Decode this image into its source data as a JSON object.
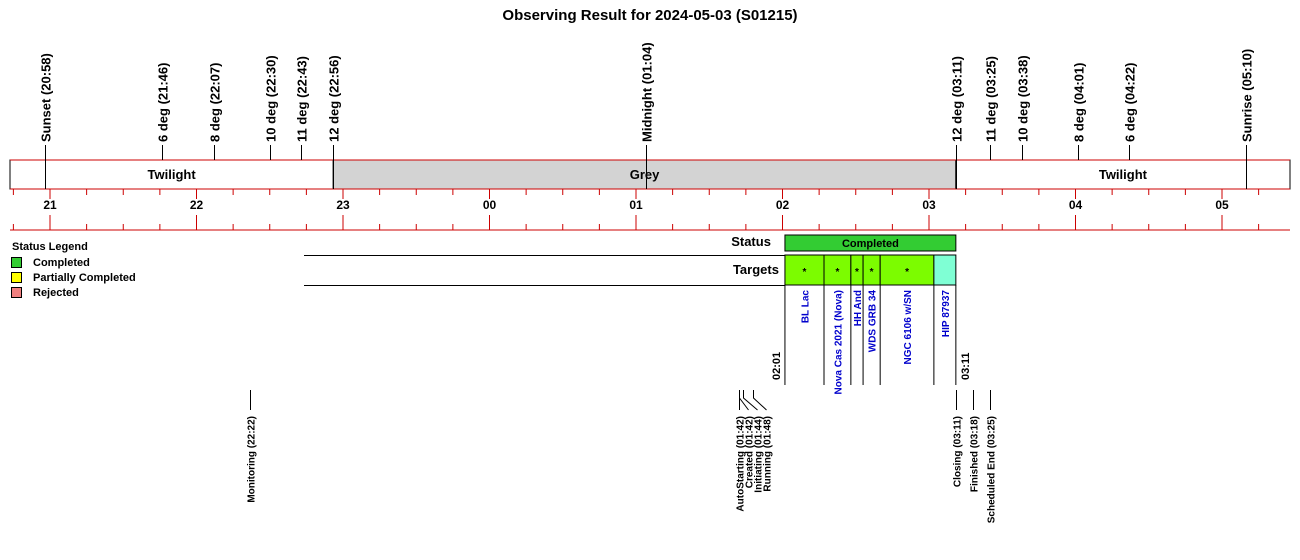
{
  "chart_data": {
    "type": "timeline",
    "title": "Observing Result for 2024-05-03 (S01215)",
    "hour_ticks": [
      "21",
      "22",
      "23",
      "00",
      "01",
      "02",
      "03",
      "04",
      "05"
    ],
    "sun_events": [
      {
        "label": "Sunset (20:58)",
        "time": "20:58"
      },
      {
        "label": "6 deg (21:46)",
        "time": "21:46"
      },
      {
        "label": "8 deg (22:07)",
        "time": "22:07"
      },
      {
        "label": "10 deg (22:30)",
        "time": "22:30"
      },
      {
        "label": "11 deg (22:43)",
        "time": "22:43"
      },
      {
        "label": "12 deg (22:56)",
        "time": "22:56"
      },
      {
        "label": "Midnight (01:04)",
        "time": "01:04"
      },
      {
        "label": "12 deg (03:11)",
        "time": "03:11"
      },
      {
        "label": "11 deg (03:25)",
        "time": "03:25"
      },
      {
        "label": "10 deg (03:38)",
        "time": "03:38"
      },
      {
        "label": "8 deg (04:01)",
        "time": "04:01"
      },
      {
        "label": "6 deg (04:22)",
        "time": "04:22"
      },
      {
        "label": "Sunrise (05:10)",
        "time": "05:10"
      }
    ],
    "sky_bands": [
      {
        "label": "Twilight",
        "start": "20:45",
        "end": "22:56",
        "color": "#ffffff"
      },
      {
        "label": "Grey",
        "start": "22:56",
        "end": "03:11",
        "color": "#d3d3d3"
      },
      {
        "label": "Twilight",
        "start": "03:11",
        "end": "05:25",
        "color": "#ffffff"
      }
    ],
    "status_row": {
      "label": "Status",
      "value": "Completed",
      "start": "02:01",
      "end": "03:11",
      "color": "#33cc33"
    },
    "targets_row_label": "Targets",
    "targets": [
      {
        "name": "BL Lac",
        "start": "02:01",
        "end": "02:17",
        "color": "#7cfc00",
        "mark": "*"
      },
      {
        "name": "Nova Cas 2021 (Nova)",
        "start": "02:17",
        "end": "02:28",
        "color": "#7cfc00",
        "mark": "*"
      },
      {
        "name": "HH And",
        "start": "02:28",
        "end": "02:33",
        "color": "#7cfc00",
        "mark": "*"
      },
      {
        "name": "WDS GRB 34",
        "start": "02:33",
        "end": "02:40",
        "color": "#7cfc00",
        "mark": "*"
      },
      {
        "name": "NGC 6106 w/SN",
        "start": "02:40",
        "end": "03:02",
        "color": "#7cfc00",
        "mark": "*"
      },
      {
        "name": "HIP 87937",
        "start": "03:02",
        "end": "03:11",
        "color": "#7fffd4",
        "mark": ""
      }
    ],
    "window_start_label": "02:01",
    "window_end_label": "03:11",
    "status_legend": {
      "title": "Status Legend",
      "items": [
        {
          "label": "Completed",
          "color": "#33cc33"
        },
        {
          "label": "Partially Completed",
          "color": "#ffff00"
        },
        {
          "label": "Rejected",
          "color": "#f08080"
        }
      ]
    },
    "events": [
      {
        "label": "Monitoring (22:22)",
        "time": "22:22"
      },
      {
        "label": "AutoStarting (01:42)",
        "time": "01:42"
      },
      {
        "label": "Created (01:42)",
        "time": "01:42"
      },
      {
        "label": "Initiating (01:44)",
        "time": "01:44"
      },
      {
        "label": "Running (01:48)",
        "time": "01:48"
      },
      {
        "label": "Closing (03:11)",
        "time": "03:11"
      },
      {
        "label": "Finished (03:18)",
        "time": "03:18"
      },
      {
        "label": "Scheduled End (03:25)",
        "time": "03:25"
      }
    ],
    "colors": {
      "axis_line": "#cc0000",
      "grey_band": "#d3d3d3"
    }
  }
}
